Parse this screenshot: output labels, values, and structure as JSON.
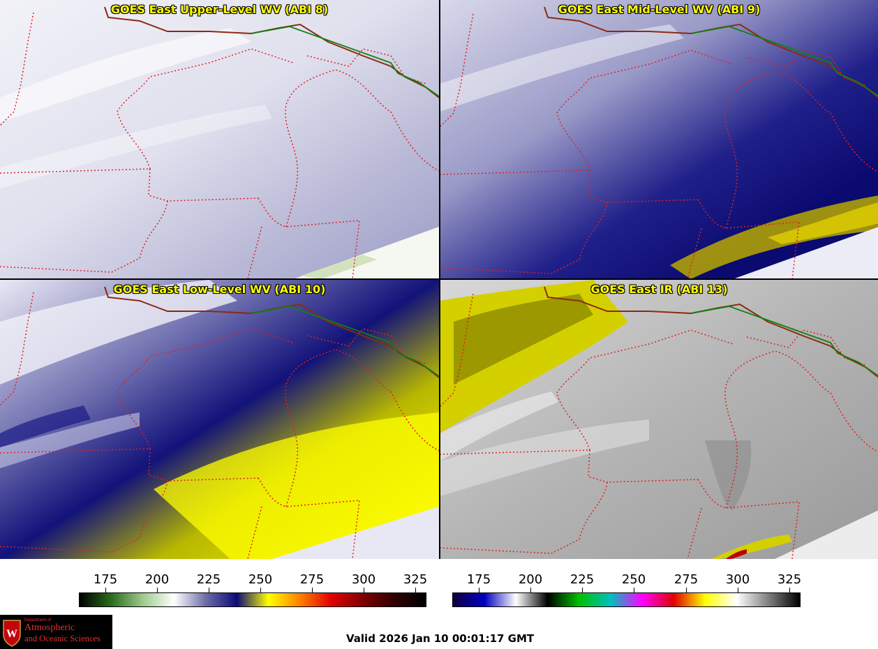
{
  "panels": [
    {
      "title": "GOES East Upper-Level WV (ABI 8)"
    },
    {
      "title": "GOES East Mid-Level WV (ABI 9)"
    },
    {
      "title": "GOES East Low-Level WV (ABI 10)"
    },
    {
      "title": "GOES East IR (ABI 13)"
    }
  ],
  "colorbars": [
    {
      "name": "water-vapor-colorbar",
      "ticks": [
        "175",
        "200",
        "225",
        "250",
        "275",
        "300",
        "325"
      ],
      "colors": [
        "#000000",
        "#2a6b1c",
        "#9cc98c",
        "#ffffff",
        "#6e6ea8",
        "#0b0b78",
        "#ffff00",
        "#ff8000",
        "#e00000",
        "#800000",
        "#300000",
        "#000000"
      ]
    },
    {
      "name": "infrared-colorbar",
      "ticks": [
        "175",
        "200",
        "225",
        "250",
        "275",
        "300",
        "325"
      ],
      "colors": [
        "#100040",
        "#0000c0",
        "#ffffff",
        "#000000",
        "#00c000",
        "#00c0c0",
        "#ff00ff",
        "#e00000",
        "#ffff00",
        "#ffffff",
        "#808080",
        "#000000"
      ]
    }
  ],
  "logo": {
    "line1": "Department of",
    "line2": "Atmospheric",
    "line3": "and Oceanic Sciences"
  },
  "valid_time": "Valid 2026 Jan 10 00:01:17 GMT"
}
